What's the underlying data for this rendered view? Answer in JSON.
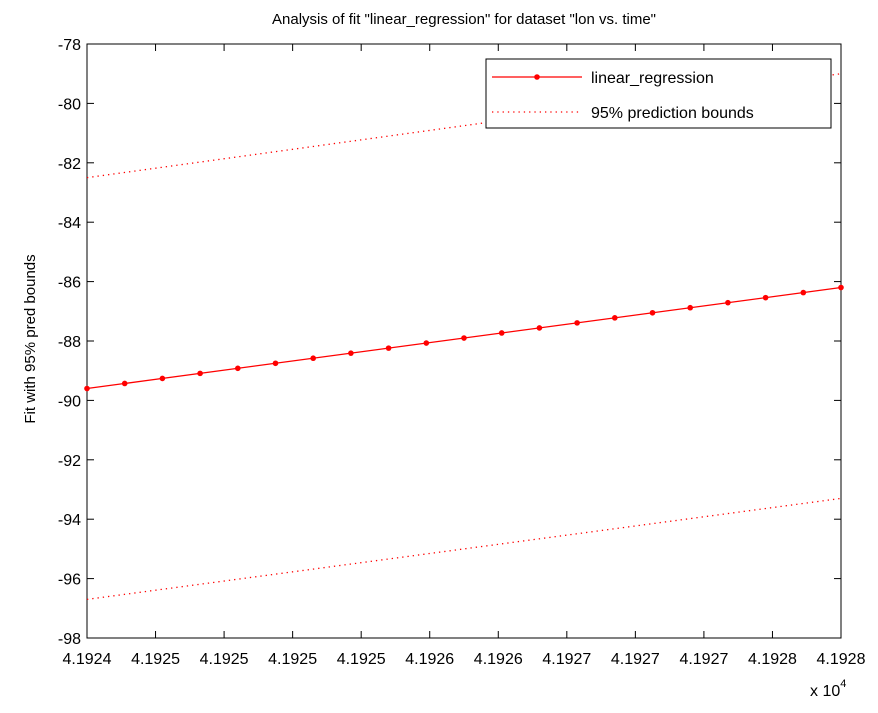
{
  "chart_data": {
    "type": "line",
    "title": "Analysis of fit \"linear_regression\" for dataset \"lon vs. time\"",
    "xlabel": "",
    "ylabel": "Fit with 95% pred bounds",
    "x_exponent_label": "x 10",
    "x_exponent_power": "4",
    "xlim": [
      4.1924,
      4.1928
    ],
    "ylim": [
      -98,
      -78
    ],
    "xtick_labels": [
      "4.1924",
      "4.1925",
      "4.1925",
      "4.1925",
      "4.1925",
      "4.1926",
      "4.1926",
      "4.1927",
      "4.1927",
      "4.1927",
      "4.1928",
      "4.1928"
    ],
    "ytick_values": [
      -98,
      -96,
      -94,
      -92,
      -90,
      -88,
      -86,
      -84,
      -82,
      -80,
      -78
    ],
    "ytick_labels": [
      "-98",
      "-96",
      "-94",
      "-92",
      "-90",
      "-88",
      "-86",
      "-84",
      "-82",
      "-80",
      "-78"
    ],
    "grid": false,
    "legend_position": "top-right",
    "series": [
      {
        "name": "linear_regression",
        "style": "solid-marker",
        "color": "#ff0000",
        "x_start": 4.1924,
        "x_end": 4.1928,
        "num_points": 21,
        "y_start": -89.6,
        "y_end": -86.2
      },
      {
        "name": "95% prediction bounds",
        "style": "dotted",
        "color": "#ff0000",
        "x_start": 4.1924,
        "x_end": 4.1928,
        "y_start": -82.5,
        "y_end": -79.0
      },
      {
        "name": "",
        "style": "dotted",
        "color": "#ff0000",
        "x_start": 4.1924,
        "x_end": 4.1928,
        "y_start": -96.7,
        "y_end": -93.3
      }
    ]
  }
}
